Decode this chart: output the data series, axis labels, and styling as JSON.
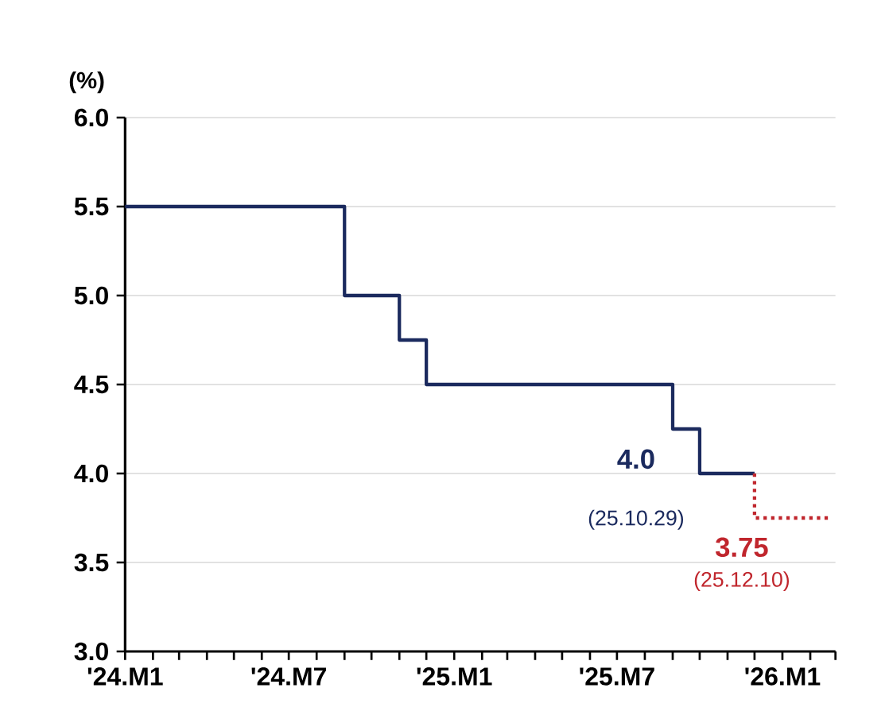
{
  "chart_data": {
    "type": "step",
    "ylabel": "(%)",
    "series": [
      {
        "color": "#1b2a5e",
        "x": [
          "2024-01",
          "2024-09",
          "2024-11",
          "2024-12",
          "2025-09",
          "2025-10",
          "2025-12"
        ],
        "values": [
          5.5,
          5.0,
          4.75,
          4.5,
          4.25,
          4.0,
          4.0
        ]
      },
      {
        "type": "line",
        "line_style": "dotted",
        "color": "#c0262d",
        "x": [
          "2025-12",
          "2025-12",
          "2026-02-22"
        ],
        "values": [
          4.0,
          3.75,
          3.75
        ]
      }
    ],
    "xlim": [
      "2024-01",
      "2026-03"
    ],
    "xticks": [
      {
        "value": "2024-01",
        "label": "'24.M1"
      },
      {
        "value": "2024-02",
        "label": null
      },
      {
        "value": "2024-03",
        "label": null
      },
      {
        "value": "2024-04",
        "label": null
      },
      {
        "value": "2024-05",
        "label": null
      },
      {
        "value": "2024-06",
        "label": null
      },
      {
        "value": "2024-07",
        "label": "'24.M7"
      },
      {
        "value": "2024-08",
        "label": null
      },
      {
        "value": "2024-09",
        "label": null
      },
      {
        "value": "2024-10",
        "label": null
      },
      {
        "value": "2024-11",
        "label": null
      },
      {
        "value": "2024-12",
        "label": null
      },
      {
        "value": "2025-01",
        "label": "'25.M1"
      },
      {
        "value": "2025-02",
        "label": null
      },
      {
        "value": "2025-03",
        "label": null
      },
      {
        "value": "2025-04",
        "label": null
      },
      {
        "value": "2025-05",
        "label": null
      },
      {
        "value": "2025-06",
        "label": null
      },
      {
        "value": "2025-07",
        "label": "'25.M7"
      },
      {
        "value": "2025-08",
        "label": null
      },
      {
        "value": "2025-09",
        "label": null
      },
      {
        "value": "2025-10",
        "label": null
      },
      {
        "value": "2025-11",
        "label": null
      },
      {
        "value": "2025-12",
        "label": null
      },
      {
        "value": "2026-01",
        "label": "'26.M1"
      },
      {
        "value": "2026-02",
        "label": null
      },
      {
        "value": "2026-03",
        "label": null
      }
    ],
    "ylim": [
      3.0,
      6.0
    ],
    "yticks": [
      {
        "value": 3.0,
        "label": "3.0"
      },
      {
        "value": 3.5,
        "label": "3.5"
      },
      {
        "value": 4.0,
        "label": "4.0"
      },
      {
        "value": 4.5,
        "label": "4.5"
      },
      {
        "value": 5.0,
        "label": "5.0"
      },
      {
        "value": 5.5,
        "label": "5.5"
      },
      {
        "value": 6.0,
        "label": "6.0"
      }
    ],
    "grid": "y",
    "annotations": [
      {
        "text": "4.0",
        "x": "2025-10",
        "y": 4.0
      },
      {
        "text": "(25.10.29)",
        "x": "2025-10",
        "y": 4.0
      },
      {
        "text": "3.75",
        "x": "2025-12",
        "y": 3.75
      },
      {
        "text": "(25.12.10)",
        "x": "2025-12",
        "y": 3.75
      }
    ]
  }
}
